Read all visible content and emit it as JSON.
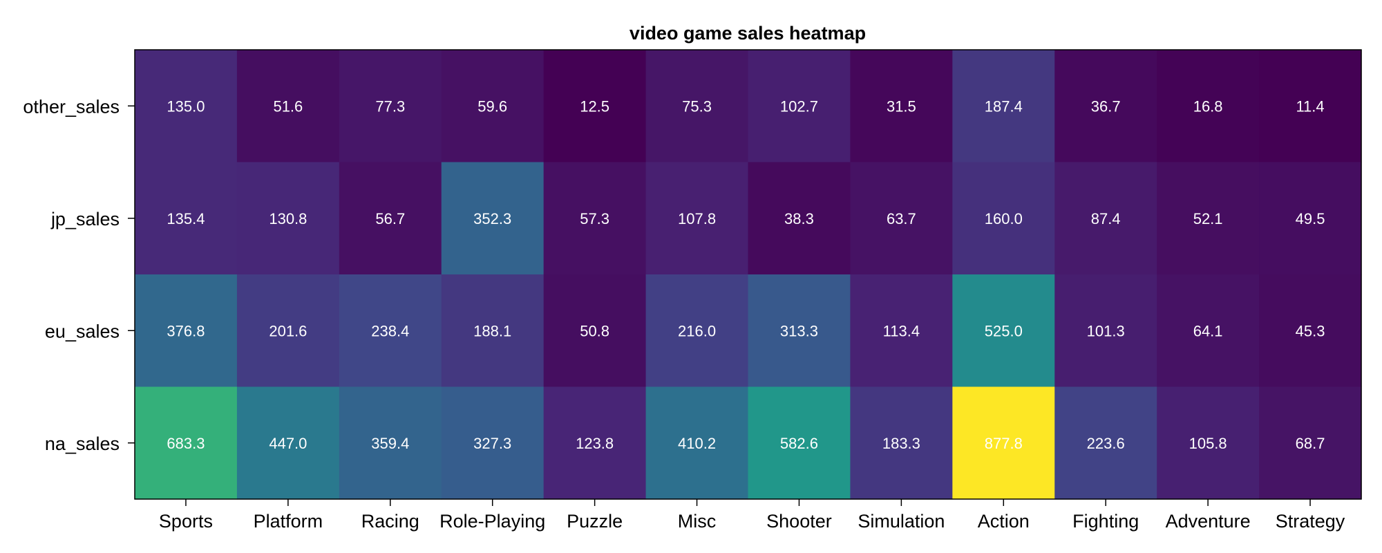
{
  "chart_data": {
    "type": "heatmap",
    "title": "video game sales heatmap",
    "xlabel": "",
    "ylabel": "",
    "x_categories": [
      "Sports",
      "Platform",
      "Racing",
      "Role-Playing",
      "Puzzle",
      "Misc",
      "Shooter",
      "Simulation",
      "Action",
      "Fighting",
      "Adventure",
      "Strategy"
    ],
    "y_categories": [
      "other_sales",
      "jp_sales",
      "eu_sales",
      "na_sales"
    ],
    "values": [
      [
        135.0,
        51.6,
        77.3,
        59.6,
        12.5,
        75.3,
        102.7,
        31.5,
        187.4,
        36.7,
        16.8,
        11.4
      ],
      [
        135.4,
        130.8,
        56.7,
        352.3,
        57.3,
        107.8,
        38.3,
        63.7,
        160.0,
        87.4,
        52.1,
        49.5
      ],
      [
        376.8,
        201.6,
        238.4,
        188.1,
        50.8,
        216.0,
        313.3,
        113.4,
        525.0,
        101.3,
        64.1,
        45.3
      ],
      [
        683.3,
        447.0,
        359.4,
        327.3,
        123.8,
        410.2,
        582.6,
        183.3,
        877.8,
        223.6,
        105.8,
        68.7
      ]
    ],
    "colormap": "viridis",
    "color_range": [
      11.4,
      877.8
    ],
    "value_label_color": "#ffffff",
    "grid": false,
    "legend": "none"
  }
}
